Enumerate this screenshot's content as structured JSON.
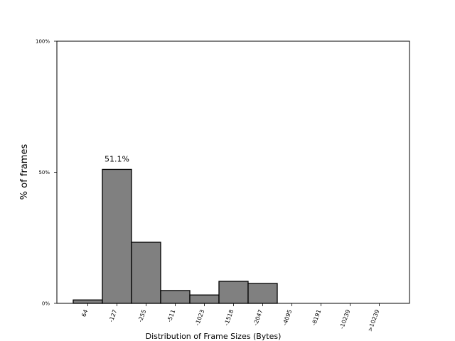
{
  "chart_data": {
    "type": "bar",
    "title": "",
    "xlabel": "Distribution of Frame Sizes (Bytes)",
    "ylabel": "% of frames",
    "categories": [
      "64",
      "-127",
      "-255",
      "-511",
      "-1023",
      "-1518",
      "-2047",
      "-4095",
      "-8191",
      "-10239",
      ">10239"
    ],
    "values": [
      1.3,
      51.1,
      23.3,
      4.9,
      3.2,
      8.4,
      7.6,
      0.0,
      0.0,
      0.0,
      0.0
    ],
    "y_ticks": [
      {
        "value": 0,
        "label": "0%"
      },
      {
        "value": 50,
        "label": "50%"
      },
      {
        "value": 100,
        "label": "100%"
      }
    ],
    "ylim": [
      0,
      100
    ],
    "annotations": [
      {
        "category": "-127",
        "value": 51.1,
        "label": "51.1%"
      }
    ],
    "grid": false,
    "bar_color": "#808080",
    "edge_color": "#000000"
  }
}
